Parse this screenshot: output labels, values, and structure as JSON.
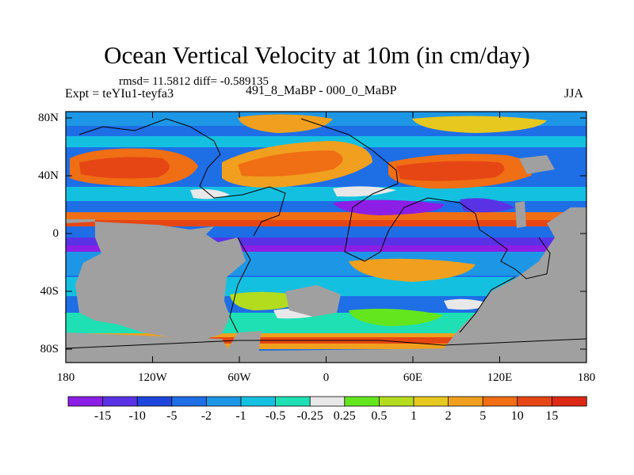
{
  "title": "Ocean Vertical Velocity at 10m (in cm/day)",
  "stats": "rmsd= 11.5812 diff= -0.589135",
  "expt": "Expt = teYIu1-teyfa3",
  "period": "491_8_MaBP - 000_0_MaBP",
  "season": "JJA",
  "y_ticks": [
    "80N",
    "40N",
    "0",
    "40S",
    "80S"
  ],
  "x_ticks": [
    "180",
    "120W",
    "60W",
    "0",
    "60E",
    "120E",
    "180"
  ],
  "colorbar": {
    "labels": [
      "-15",
      "-10",
      "-5",
      "-2",
      "-1",
      "-0.5",
      "-0.25",
      "0.25",
      "0.5",
      "1",
      "2",
      "5",
      "10",
      "15"
    ],
    "colors": [
      "#8c1ee6",
      "#5a32e6",
      "#1e46dc",
      "#1e6ee6",
      "#1e96e6",
      "#14c0e0",
      "#1ee0b4",
      "#e8e8e8",
      "#64e61e",
      "#b4dc1e",
      "#e6c81e",
      "#f0a01e",
      "#f06e14",
      "#e64614",
      "#dc2814"
    ]
  },
  "colors": {
    "land": "#a0a0a0",
    "background": "#ffffff"
  }
}
